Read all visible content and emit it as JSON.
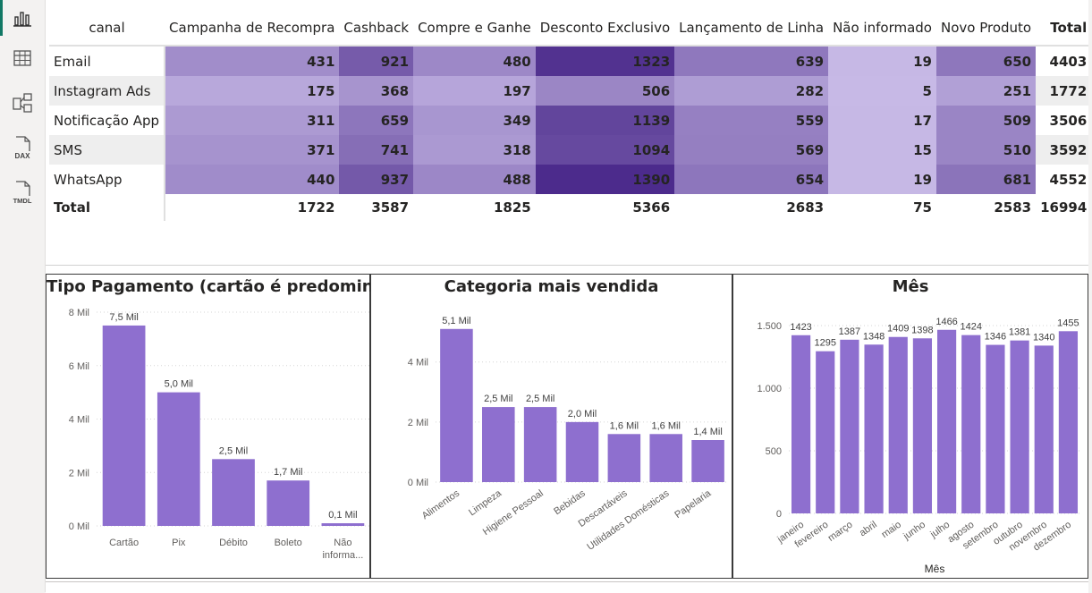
{
  "sidebar": {
    "items": [
      {
        "name": "report-view-icon",
        "active": true
      },
      {
        "name": "table-view-icon",
        "active": false
      },
      {
        "name": "model-view-icon",
        "active": false
      },
      {
        "name": "dax-query-view-icon",
        "label": "DAX",
        "active": false
      },
      {
        "name": "tmdl-view-icon",
        "label": "TMDL",
        "active": false
      }
    ]
  },
  "matrix": {
    "row_header": "canal",
    "columns": [
      "Campanha de Recompra",
      "Cashback",
      "Compre e Ganhe",
      "Desconto Exclusivo",
      "Lançamento de Linha",
      "Não informado",
      "Novo Produto"
    ],
    "total_label": "Total",
    "rows": [
      {
        "label": "Email",
        "values": [
          431,
          921,
          480,
          1323,
          639,
          19,
          650
        ],
        "total": 4403
      },
      {
        "label": "Instagram Ads",
        "values": [
          175,
          368,
          197,
          506,
          282,
          5,
          251
        ],
        "total": 1772
      },
      {
        "label": "Notificação App",
        "values": [
          311,
          659,
          349,
          1139,
          559,
          17,
          509
        ],
        "total": 3506
      },
      {
        "label": "SMS",
        "values": [
          371,
          741,
          318,
          1094,
          569,
          15,
          510
        ],
        "total": 3592
      },
      {
        "label": "WhatsApp",
        "values": [
          440,
          937,
          488,
          1390,
          654,
          19,
          681
        ],
        "total": 4552
      }
    ],
    "totals": [
      1722,
      3587,
      1825,
      5366,
      2683,
      75,
      2583
    ],
    "grand_total": 16994,
    "heat_low": "#c7b9e6",
    "heat_high": "#4c2b8c"
  },
  "chart_data": [
    {
      "type": "bar",
      "title": "Tipo Pagamento (cartão é predominante)",
      "categories": [
        "Cartão",
        "Pix",
        "Débito",
        "Boleto",
        "Não informa..."
      ],
      "values": [
        7.5,
        5.0,
        2.5,
        1.7,
        0.1
      ],
      "data_labels": [
        "7,5 Mil",
        "5,0 Mil",
        "2,5 Mil",
        "1,7 Mil",
        "0,1 Mil"
      ],
      "yticks": [
        0,
        2,
        4,
        6,
        8
      ],
      "ytick_labels": [
        "0 Mil",
        "2 Mil",
        "4 Mil",
        "6 Mil",
        "8 Mil"
      ],
      "ylim": [
        0,
        8
      ],
      "xlabel": "",
      "ylabel": "",
      "grid": true,
      "bar_color": "#8e6fcf"
    },
    {
      "type": "bar",
      "title": "Categoria mais vendida",
      "categories": [
        "Alimentos",
        "Limpeza",
        "Higiene Pessoal",
        "Bebidas",
        "Descartáveis",
        "Utilidades Domésticas",
        "Papelaria"
      ],
      "values": [
        5.1,
        2.5,
        2.5,
        2.0,
        1.6,
        1.6,
        1.4
      ],
      "data_labels": [
        "5,1 Mil",
        "2,5 Mil",
        "2,5 Mil",
        "2,0 Mil",
        "1,6 Mil",
        "1,6 Mil",
        "1,4 Mil"
      ],
      "yticks": [
        0,
        2,
        4
      ],
      "ytick_labels": [
        "0 Mil",
        "2 Mil",
        "4 Mil"
      ],
      "ylim": [
        0,
        5.6
      ],
      "xlabel": "",
      "ylabel": "",
      "grid": true,
      "bar_color": "#8e6fcf"
    },
    {
      "type": "bar",
      "title": "Mês",
      "categories": [
        "janeiro",
        "fevereiro",
        "março",
        "abril",
        "maio",
        "junho",
        "julho",
        "agosto",
        "setembro",
        "outubro",
        "novembro",
        "dezembro"
      ],
      "values": [
        1423,
        1295,
        1387,
        1348,
        1409,
        1398,
        1466,
        1424,
        1346,
        1381,
        1340,
        1455
      ],
      "data_labels": [
        "1423",
        "1295",
        "1387",
        "1348",
        "1409",
        "1398",
        "1466",
        "1424",
        "1346",
        "1381",
        "1340",
        "1455"
      ],
      "yticks": [
        0,
        500,
        1000,
        1500
      ],
      "ytick_labels": [
        "0",
        "500",
        "1.000",
        "1.500"
      ],
      "ylim": [
        0,
        1500
      ],
      "xlabel": "Mês",
      "ylabel": "",
      "grid": true,
      "bar_color": "#8e6fcf"
    }
  ]
}
